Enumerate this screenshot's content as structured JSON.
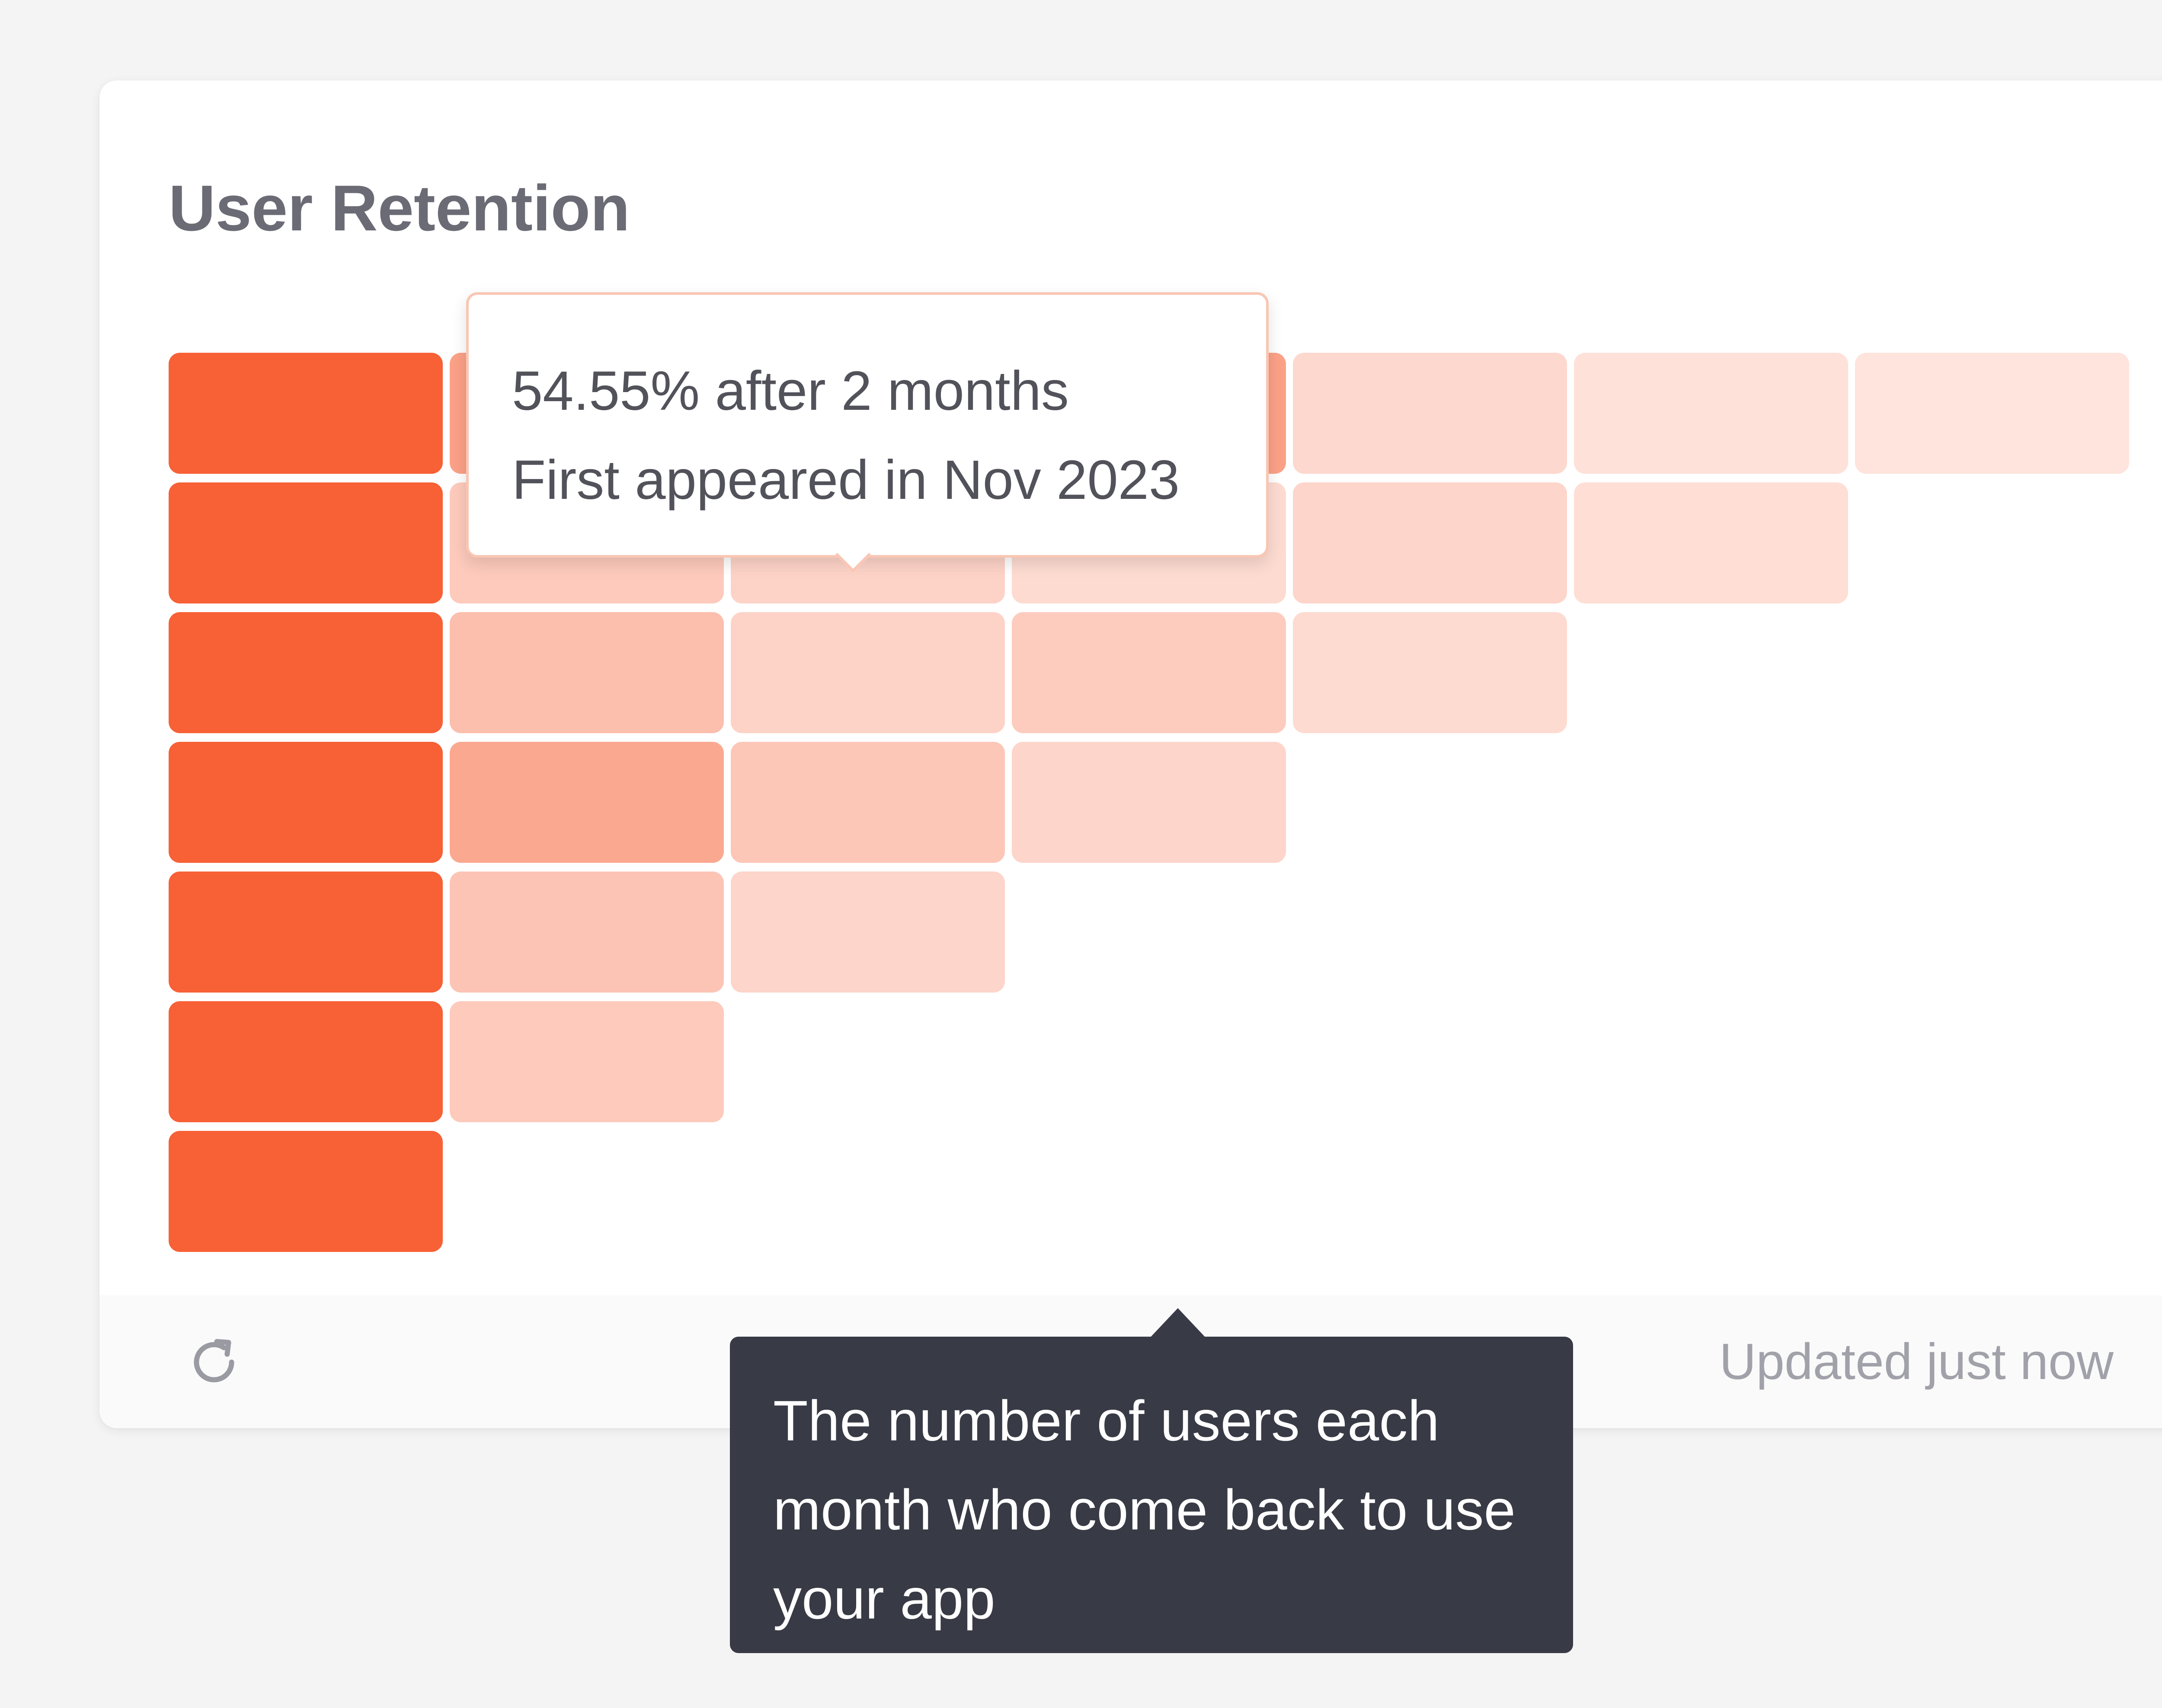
{
  "widget": {
    "title": "User Retention",
    "footer": {
      "refresh_icon": "refresh-icon",
      "updated_text": "Updated just now"
    }
  },
  "hover_tooltip": {
    "line1": "54.55% after 2 months",
    "line2": "First appeared in Nov 2023"
  },
  "help_tooltip": {
    "text": "The number of users each month who come back to use your app"
  },
  "colors": {
    "accent": "#f86035",
    "cell_base": "#f86035",
    "tooltip_border": "#f9c6b4",
    "help_tooltip_bg": "#383a45"
  },
  "chart_data": {
    "type": "heatmap",
    "title": "User Retention",
    "rows": [
      [
        100,
        54.55,
        54.55,
        54.55,
        16,
        10,
        8
      ],
      [
        100,
        26,
        20,
        14,
        18,
        12
      ],
      [
        100,
        34,
        20,
        24,
        14
      ],
      [
        100,
        50,
        28,
        18
      ],
      [
        100,
        30,
        18
      ],
      [
        100,
        26
      ],
      [
        100
      ]
    ]
  }
}
